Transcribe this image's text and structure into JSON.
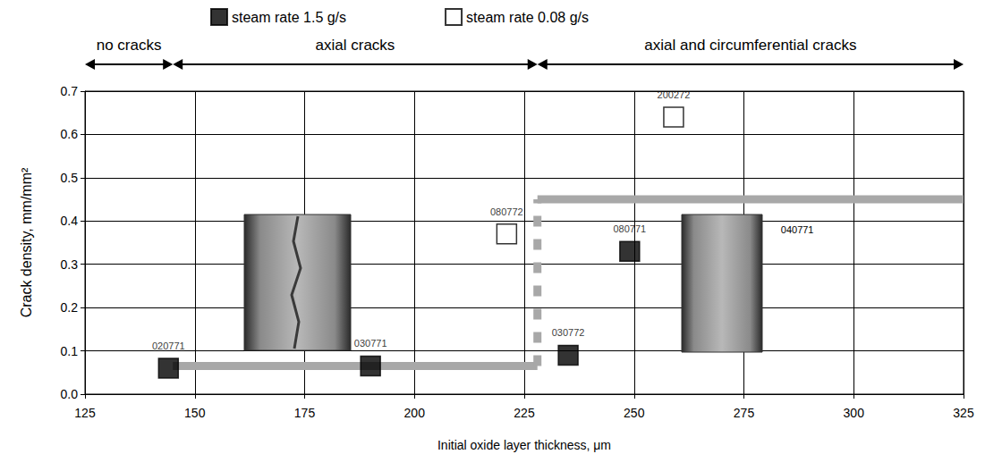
{
  "chart_data": {
    "type": "scatter",
    "xlabel": "Initial oxide layer thickness, μm",
    "ylabel": "Crack density, mm/mm²",
    "xlim": [
      125,
      325
    ],
    "xticks": [
      125,
      150,
      175,
      200,
      225,
      250,
      275,
      300,
      325
    ],
    "ylim": [
      0,
      0.7
    ],
    "yticks": [
      {
        "value": 0,
        "label": "0.0"
      },
      0.1,
      0.2,
      0.3,
      0.4,
      0.5,
      0.6,
      0.7
    ],
    "grid": true,
    "legend": "top",
    "series": [
      {
        "name": "steam rate 1.5 g/s",
        "color": "#000000",
        "marker": "square",
        "x": [
          144,
          190,
          235,
          249
        ],
        "values": [
          0.06,
          0.065,
          0.09,
          0.33
        ],
        "point_labels": [
          "020771",
          "030771",
          "030772",
          "080771"
        ]
      },
      {
        "name": "steam rate 0.08 g/s",
        "color": "#000000",
        "marker": "open_square",
        "x": [
          221,
          259
        ],
        "values": [
          0.37,
          0.64
        ],
        "point_labels": [
          "080772",
          "200272"
        ]
      }
    ],
    "annotations": [
      {
        "text": "040771",
        "x": 283,
        "y": 0.38
      }
    ],
    "regions": [
      {
        "label": "no cracks",
        "x_start": 125,
        "x_end": 145
      },
      {
        "label": "axial cracks",
        "x_start": 145,
        "x_end": 228
      },
      {
        "label": "axial and circumferential cracks",
        "x_start": 228,
        "x_end": 325
      }
    ],
    "guide_lines": {
      "color": "#a8a8a8",
      "segments": [
        {
          "x": [
            145,
            228
          ],
          "y": [
            0.065,
            0.065
          ],
          "line_style": "solid"
        },
        {
          "x": [
            228,
            228
          ],
          "y": [
            0.065,
            0.45
          ],
          "line_style": "dashed"
        },
        {
          "x": [
            228,
            325
          ],
          "y": [
            0.45,
            0.45
          ],
          "line_style": "solid"
        }
      ]
    }
  }
}
